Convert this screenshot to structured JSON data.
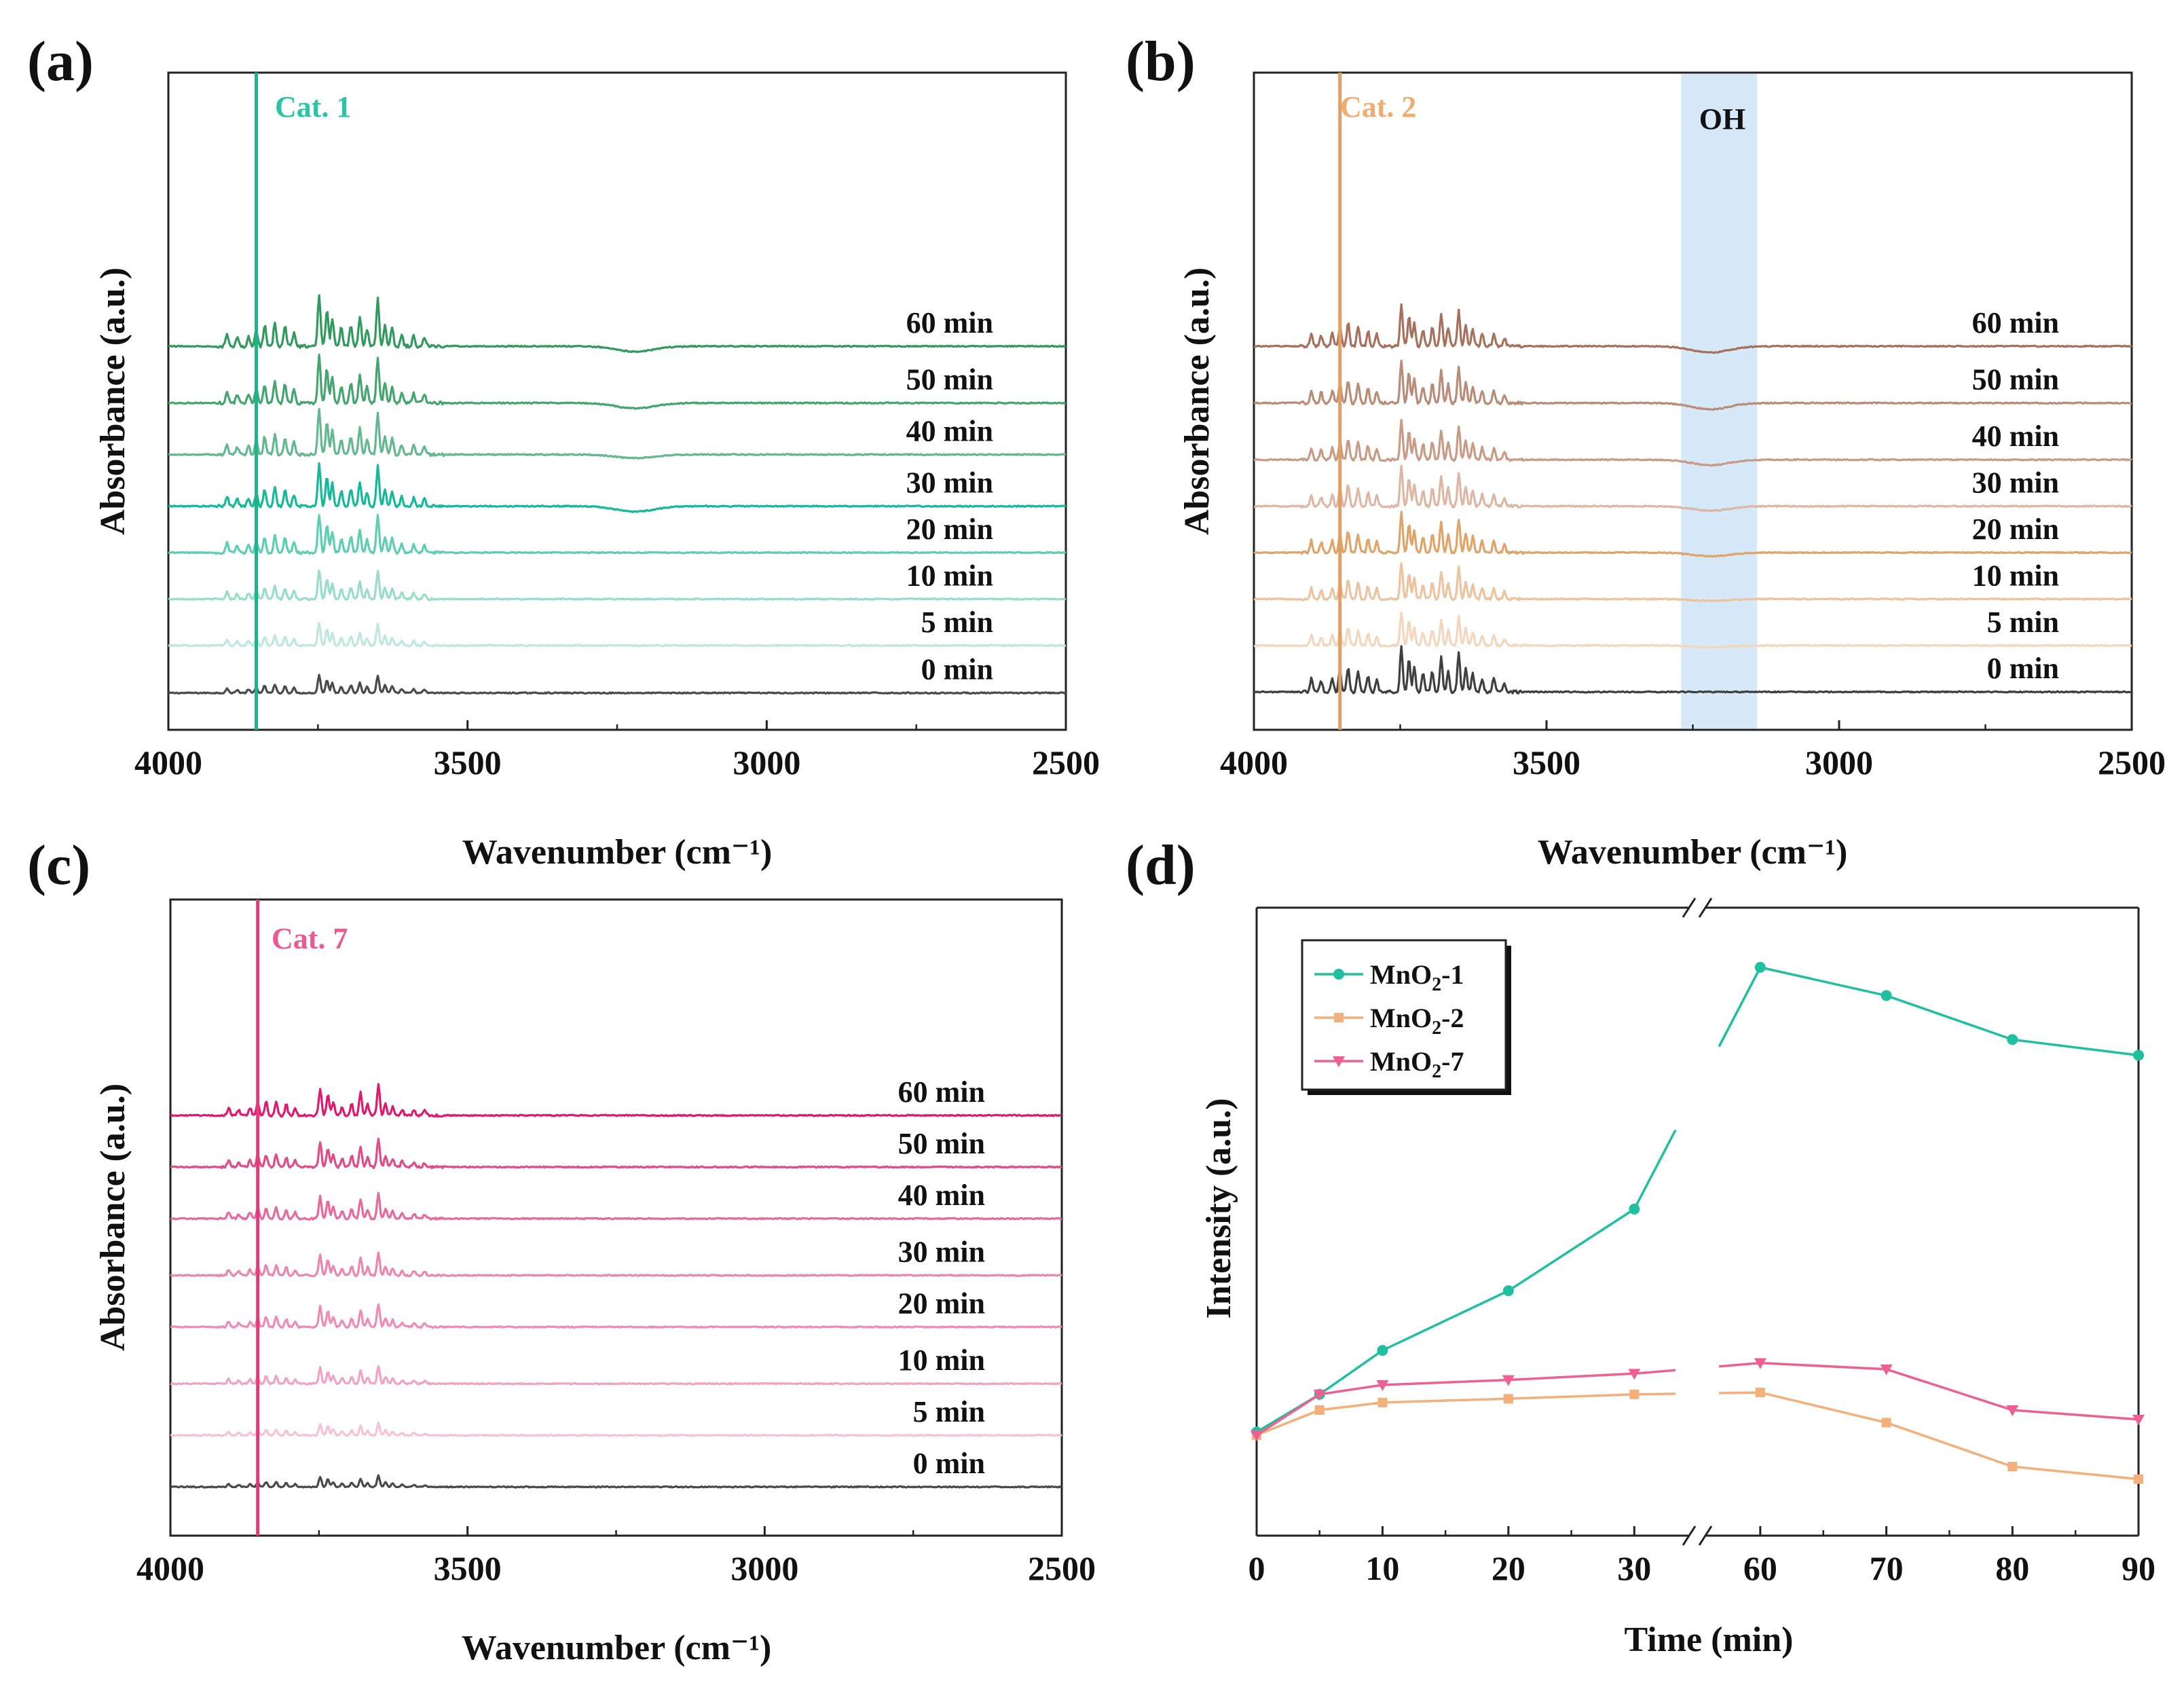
{
  "chart_data": [
    {
      "panel": "(a)",
      "type": "line",
      "title": "",
      "xlabel": "Wavenumber (cm⁻¹)",
      "ylabel": "Absorbance (a.u.)",
      "xlim": [
        4000,
        2500
      ],
      "xticks": [
        4000,
        3500,
        3000,
        2500
      ],
      "x_reversed": true,
      "yticks": "none",
      "marker_line": {
        "x": 3853,
        "color": "#1db38c"
      },
      "annotation": {
        "text": "Cat. 1",
        "color": "#2bc4a6"
      },
      "peaks": [
        {
          "x": 3902,
          "h": 0.25
        },
        {
          "x": 3885,
          "h": 0.18
        },
        {
          "x": 3866,
          "h": 0.2
        },
        {
          "x": 3853,
          "h": 0.3
        },
        {
          "x": 3839,
          "h": 0.4
        },
        {
          "x": 3822,
          "h": 0.45
        },
        {
          "x": 3805,
          "h": 0.38
        },
        {
          "x": 3790,
          "h": 0.28
        },
        {
          "x": 3748,
          "h": 1.0
        },
        {
          "x": 3735,
          "h": 0.72
        },
        {
          "x": 3726,
          "h": 0.55
        },
        {
          "x": 3711,
          "h": 0.36
        },
        {
          "x": 3695,
          "h": 0.42
        },
        {
          "x": 3680,
          "h": 0.58
        },
        {
          "x": 3668,
          "h": 0.34
        },
        {
          "x": 3650,
          "h": 0.95
        },
        {
          "x": 3638,
          "h": 0.42
        },
        {
          "x": 3626,
          "h": 0.36
        },
        {
          "x": 3610,
          "h": 0.22
        },
        {
          "x": 3590,
          "h": 0.2
        },
        {
          "x": 3572,
          "h": 0.18
        }
      ],
      "series": [
        {
          "name": "0 min",
          "label": "0 min",
          "color": "#4a4a4a",
          "baseline": 0.028,
          "amplitude": 0.28,
          "dip": 0
        },
        {
          "name": "5 min",
          "label": "5 min",
          "color": "#bfe8dc",
          "baseline": 0.12,
          "amplitude": 0.35,
          "dip": 0
        },
        {
          "name": "10 min",
          "label": "10 min",
          "color": "#98ddca",
          "baseline": 0.21,
          "amplitude": 0.45,
          "dip": 0
        },
        {
          "name": "20 min",
          "label": "20 min",
          "color": "#5ccfb2",
          "baseline": 0.3,
          "amplitude": 0.6,
          "dip": 0
        },
        {
          "name": "30 min",
          "label": "30 min",
          "color": "#14b99a",
          "baseline": 0.39,
          "amplitude": 0.65,
          "dip": 0.03
        },
        {
          "name": "40 min",
          "label": "40 min",
          "color": "#63b88f",
          "baseline": 0.49,
          "amplitude": 0.7,
          "dip": 0.02
        },
        {
          "name": "50 min",
          "label": "50 min",
          "color": "#45a56f",
          "baseline": 0.59,
          "amplitude": 0.75,
          "dip": 0.03
        },
        {
          "name": "60 min",
          "label": "60 min",
          "color": "#2f9a5c",
          "baseline": 0.7,
          "amplitude": 0.8,
          "dip": 0.03
        }
      ]
    },
    {
      "panel": "(b)",
      "type": "line",
      "title": "",
      "xlabel": "Wavenumber (cm⁻¹)",
      "ylabel": "Absorbance (a.u.)",
      "xlim": [
        4000,
        2500
      ],
      "xticks": [
        4000,
        3500,
        3000,
        2500
      ],
      "x_reversed": true,
      "yticks": "none",
      "marker_line": {
        "x": 3853,
        "color": "#e0a060"
      },
      "annotation": {
        "text": "Cat. 2",
        "color": "#f0ad72"
      },
      "shaded_region": {
        "x_from": 3270,
        "x_to": 3140,
        "label": "OH",
        "color": "#d5e9f8"
      },
      "peaks": [
        {
          "x": 3902,
          "h": 0.3
        },
        {
          "x": 3885,
          "h": 0.25
        },
        {
          "x": 3866,
          "h": 0.3
        },
        {
          "x": 3853,
          "h": 0.45
        },
        {
          "x": 3839,
          "h": 0.55
        },
        {
          "x": 3822,
          "h": 0.45
        },
        {
          "x": 3805,
          "h": 0.35
        },
        {
          "x": 3790,
          "h": 0.28
        },
        {
          "x": 3748,
          "h": 1.0
        },
        {
          "x": 3735,
          "h": 0.72
        },
        {
          "x": 3726,
          "h": 0.55
        },
        {
          "x": 3711,
          "h": 0.4
        },
        {
          "x": 3695,
          "h": 0.45
        },
        {
          "x": 3680,
          "h": 0.75
        },
        {
          "x": 3668,
          "h": 0.45
        },
        {
          "x": 3650,
          "h": 0.85
        },
        {
          "x": 3638,
          "h": 0.5
        },
        {
          "x": 3626,
          "h": 0.4
        },
        {
          "x": 3610,
          "h": 0.3
        },
        {
          "x": 3590,
          "h": 0.3
        },
        {
          "x": 3572,
          "h": 0.2
        }
      ],
      "series": [
        {
          "name": "0 min",
          "label": "0 min",
          "color": "#3f3f3f",
          "baseline": 0.03,
          "amplitude": 0.75,
          "dip": 0
        },
        {
          "name": "5 min",
          "label": "5 min",
          "color": "#f4d6bd",
          "baseline": 0.12,
          "amplitude": 0.55,
          "dip": 0.01
        },
        {
          "name": "10 min",
          "label": "10 min",
          "color": "#edc39e",
          "baseline": 0.21,
          "amplitude": 0.6,
          "dip": 0.01
        },
        {
          "name": "20 min",
          "label": "20 min",
          "color": "#e0a468",
          "baseline": 0.3,
          "amplitude": 0.65,
          "dip": 0.02
        },
        {
          "name": "30 min",
          "label": "30 min",
          "color": "#deb6a4",
          "baseline": 0.39,
          "amplitude": 0.65,
          "dip": 0.025
        },
        {
          "name": "40 min",
          "label": "40 min",
          "color": "#c99a84",
          "baseline": 0.48,
          "amplitude": 0.65,
          "dip": 0.03
        },
        {
          "name": "50 min",
          "label": "50 min",
          "color": "#b98c78",
          "baseline": 0.59,
          "amplitude": 0.7,
          "dip": 0.035
        },
        {
          "name": "60 min",
          "label": "60 min",
          "color": "#a6705a",
          "baseline": 0.7,
          "amplitude": 0.7,
          "dip": 0.035
        }
      ]
    },
    {
      "panel": "(c)",
      "type": "line",
      "title": "",
      "xlabel": "Wavenumber (cm⁻¹)",
      "ylabel": "Absorbance (a.u.)",
      "xlim": [
        4000,
        2500
      ],
      "xticks": [
        4000,
        3500,
        3000,
        2500
      ],
      "x_reversed": true,
      "yticks": "none",
      "marker_line": {
        "x": 3853,
        "color": "#e43a7a"
      },
      "annotation": {
        "text": "Cat. 7",
        "color": "#ec5b8f"
      },
      "peaks": [
        {
          "x": 3902,
          "h": 0.25
        },
        {
          "x": 3885,
          "h": 0.18
        },
        {
          "x": 3866,
          "h": 0.25
        },
        {
          "x": 3853,
          "h": 0.4
        },
        {
          "x": 3839,
          "h": 0.45
        },
        {
          "x": 3822,
          "h": 0.45
        },
        {
          "x": 3805,
          "h": 0.35
        },
        {
          "x": 3790,
          "h": 0.25
        },
        {
          "x": 3748,
          "h": 0.9
        },
        {
          "x": 3735,
          "h": 0.7
        },
        {
          "x": 3726,
          "h": 0.45
        },
        {
          "x": 3711,
          "h": 0.3
        },
        {
          "x": 3695,
          "h": 0.4
        },
        {
          "x": 3680,
          "h": 0.75
        },
        {
          "x": 3668,
          "h": 0.35
        },
        {
          "x": 3650,
          "h": 1.0
        },
        {
          "x": 3638,
          "h": 0.4
        },
        {
          "x": 3626,
          "h": 0.3
        },
        {
          "x": 3610,
          "h": 0.2
        },
        {
          "x": 3590,
          "h": 0.2
        },
        {
          "x": 3572,
          "h": 0.15
        }
      ],
      "series": [
        {
          "name": "0 min",
          "label": "0 min",
          "color": "#4a4a4a",
          "baseline": 0.03,
          "amplitude": 0.22,
          "dip": 0
        },
        {
          "name": "5 min",
          "label": "5 min",
          "color": "#f6c2d6",
          "baseline": 0.13,
          "amplitude": 0.25,
          "dip": 0
        },
        {
          "name": "10 min",
          "label": "10 min",
          "color": "#f2a3c3",
          "baseline": 0.23,
          "amplitude": 0.35,
          "dip": 0
        },
        {
          "name": "20 min",
          "label": "20 min",
          "color": "#ef8cb4",
          "baseline": 0.34,
          "amplitude": 0.45,
          "dip": 0
        },
        {
          "name": "30 min",
          "label": "30 min",
          "color": "#ec86ad",
          "baseline": 0.44,
          "amplitude": 0.45,
          "dip": 0
        },
        {
          "name": "40 min",
          "label": "40 min",
          "color": "#e86a9d",
          "baseline": 0.55,
          "amplitude": 0.5,
          "dip": 0
        },
        {
          "name": "50 min",
          "label": "50 min",
          "color": "#e24a88",
          "baseline": 0.65,
          "amplitude": 0.55,
          "dip": 0
        },
        {
          "name": "60 min",
          "label": "60 min",
          "color": "#e0186e",
          "baseline": 0.75,
          "amplitude": 0.6,
          "dip": 0
        }
      ]
    },
    {
      "panel": "(d)",
      "type": "line",
      "title": "",
      "xlabel": "Time (min)",
      "ylabel": "Intensity (a.u.)",
      "xticks": [
        0,
        10,
        20,
        30,
        60,
        70,
        80,
        90
      ],
      "x_axis_break": {
        "after": 30,
        "before": 60
      },
      "ylim": [
        0,
        1
      ],
      "yticks": "none",
      "legend": "top-left",
      "series": [
        {
          "name": "MnO₂-1",
          "label_base": "MnO",
          "label_sub": "2",
          "label_suffix": "-1",
          "color": "#1fc09f",
          "marker": "circle",
          "x": [
            0,
            5,
            10,
            20,
            30,
            60,
            70,
            80,
            90
          ],
          "y": [
            0.165,
            0.225,
            0.295,
            0.39,
            0.52,
            0.905,
            0.86,
            0.79,
            0.765
          ]
        },
        {
          "name": "MnO₂-2",
          "label_base": "MnO",
          "label_sub": "2",
          "label_suffix": "-2",
          "color": "#f3b07a",
          "marker": "square",
          "x": [
            0,
            5,
            10,
            20,
            30,
            60,
            70,
            80,
            90
          ],
          "y": [
            0.16,
            0.2,
            0.212,
            0.218,
            0.225,
            0.228,
            0.18,
            0.11,
            0.09
          ]
        },
        {
          "name": "MnO₂-7",
          "label_base": "MnO",
          "label_sub": "2",
          "label_suffix": "-7",
          "color": "#ee5f92",
          "marker": "triangle-down",
          "x": [
            0,
            5,
            10,
            20,
            30,
            60,
            70,
            80,
            90
          ],
          "y": [
            0.16,
            0.225,
            0.24,
            0.248,
            0.258,
            0.275,
            0.265,
            0.2,
            0.185
          ]
        }
      ]
    }
  ]
}
